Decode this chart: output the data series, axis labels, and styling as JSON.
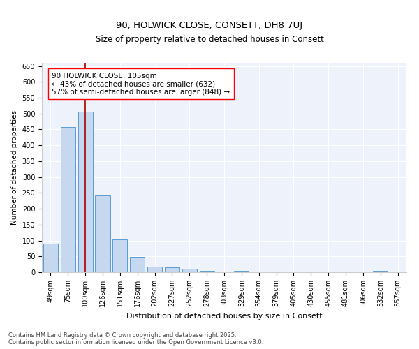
{
  "title": "90, HOLWICK CLOSE, CONSETT, DH8 7UJ",
  "subtitle": "Size of property relative to detached houses in Consett",
  "xlabel": "Distribution of detached houses by size in Consett",
  "ylabel": "Number of detached properties",
  "categories": [
    "49sqm",
    "75sqm",
    "100sqm",
    "126sqm",
    "151sqm",
    "176sqm",
    "202sqm",
    "227sqm",
    "252sqm",
    "278sqm",
    "303sqm",
    "329sqm",
    "354sqm",
    "379sqm",
    "405sqm",
    "430sqm",
    "455sqm",
    "481sqm",
    "506sqm",
    "532sqm",
    "557sqm"
  ],
  "values": [
    90,
    458,
    507,
    241,
    104,
    48,
    18,
    15,
    10,
    5,
    0,
    4,
    0,
    0,
    2,
    0,
    0,
    2,
    0,
    4,
    0
  ],
  "bar_color": "#c5d8f0",
  "bar_edge_color": "#5b9bd5",
  "vline_x": 2.0,
  "vline_color": "#aa0000",
  "annotation_text_line1": "90 HOLWICK CLOSE: 105sqm",
  "annotation_text_line2": "← 43% of detached houses are smaller (632)",
  "annotation_text_line3": "57% of semi-detached houses are larger (848) →",
  "ylim": [
    0,
    660
  ],
  "yticks": [
    0,
    50,
    100,
    150,
    200,
    250,
    300,
    350,
    400,
    450,
    500,
    550,
    600,
    650
  ],
  "background_color": "#eef2fb",
  "footer_text": "Contains HM Land Registry data © Crown copyright and database right 2025.\nContains public sector information licensed under the Open Government Licence v3.0.",
  "title_fontsize": 9.5,
  "subtitle_fontsize": 8.5,
  "xlabel_fontsize": 8,
  "ylabel_fontsize": 7.5,
  "tick_fontsize": 7,
  "annotation_fontsize": 7.5,
  "footer_fontsize": 6
}
